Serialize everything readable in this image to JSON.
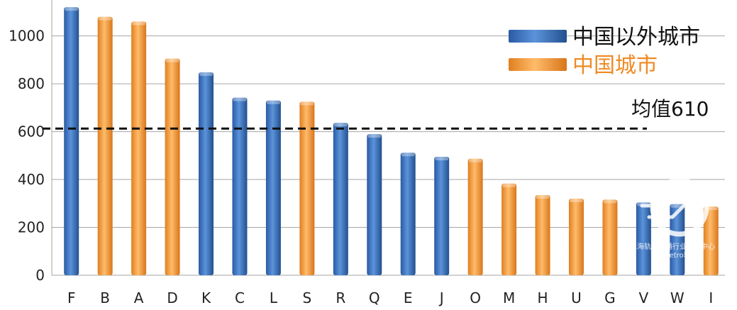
{
  "chart_data": {
    "type": "bar",
    "categories": [
      "F",
      "B",
      "A",
      "D",
      "K",
      "C",
      "L",
      "S",
      "R",
      "Q",
      "E",
      "J",
      "O",
      "M",
      "H",
      "U",
      "G",
      "V",
      "W",
      "I"
    ],
    "values": [
      1120,
      1080,
      1060,
      905,
      848,
      742,
      730,
      725,
      637,
      590,
      512,
      495,
      487,
      383,
      335,
      320,
      316,
      304,
      297,
      287
    ],
    "groups": [
      "overseas",
      "china",
      "china",
      "china",
      "overseas",
      "overseas",
      "overseas",
      "china",
      "overseas",
      "overseas",
      "overseas",
      "overseas",
      "china",
      "china",
      "china",
      "china",
      "china",
      "overseas",
      "overseas",
      "china"
    ],
    "legend": [
      {
        "key": "overseas",
        "label": "中国以外城市",
        "color": "#3a73c0"
      },
      {
        "key": "china",
        "label": "中国城市",
        "color": "#f39a3a"
      }
    ],
    "mean": {
      "label": "均值610",
      "value": 610
    },
    "yticks": [
      0,
      200,
      400,
      600,
      800,
      1000
    ],
    "ytick_labels": [
      "0",
      "200",
      "400",
      "600",
      "800",
      "1000"
    ],
    "ylim": [
      0,
      1150
    ],
    "grid": true,
    "legend_position": "top-right",
    "title": "",
    "xlabel": "",
    "ylabel": ""
  },
  "watermark": {
    "line1": "上海轨道交通行业资讯中心",
    "line2": "@Metro轨道"
  }
}
